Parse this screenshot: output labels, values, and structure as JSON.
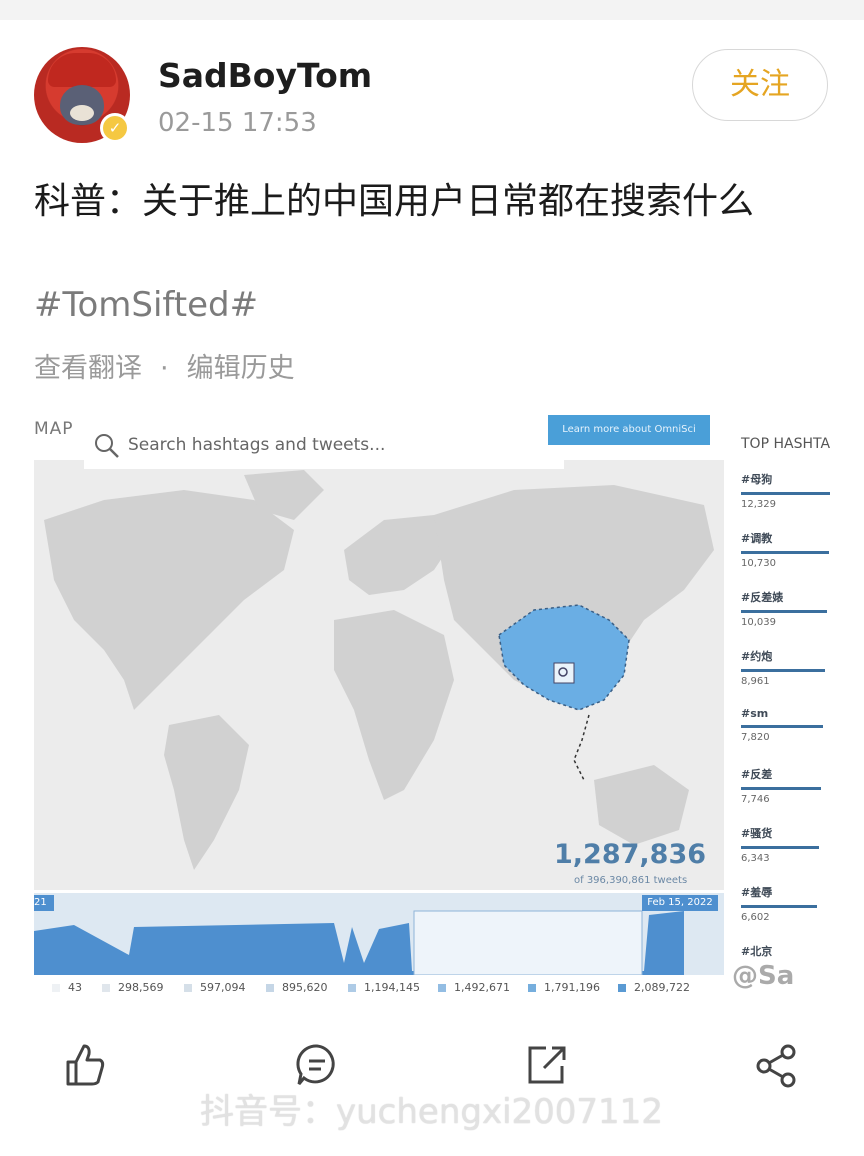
{
  "post": {
    "username": "SadBoyTom",
    "timestamp": "02-15 17:53",
    "follow_label": "关注",
    "text": "科普：关于推上的中国用户日常都在搜索什么",
    "hashtag": "#TomSifted#",
    "view_translation": "查看翻译",
    "separator": "·",
    "edit_history": "编辑历史"
  },
  "embed": {
    "map_label": "MAP",
    "search_placeholder": "Search hashtags and tweets...",
    "learn_more": "Learn more about OmniSci",
    "big_count": "1,287,836",
    "count_sub": "of 396,390,861 tweets",
    "timeline_start": "21",
    "timeline_end": "Feb 15, 2022",
    "legend": [
      "43",
      "298,569",
      "597,094",
      "895,620",
      "1,194,145",
      "1,492,671",
      "1,791,196",
      "2,089,722"
    ],
    "top_title": "TOP HASHTA",
    "top_hashtags": [
      {
        "tag": "#母狗",
        "count": "12,329"
      },
      {
        "tag": "#调教",
        "count": "10,730"
      },
      {
        "tag": "#反差婊",
        "count": "10,039"
      },
      {
        "tag": "#约炮",
        "count": "8,961"
      },
      {
        "tag": "#sm",
        "count": "7,820"
      },
      {
        "tag": "#反差",
        "count": "7,746"
      },
      {
        "tag": "#骚货",
        "count": "6,343"
      },
      {
        "tag": "#羞辱",
        "count": "6,602"
      },
      {
        "tag": "#北京",
        "count": ""
      }
    ],
    "weibo_mark": "@Sa"
  },
  "watermark": "抖音号：yuchengxi2007112",
  "icons": {
    "like": "thumbs-up-icon",
    "comment": "comment-icon",
    "repost": "repost-icon",
    "share": "share-icon"
  },
  "colors": {
    "follow_text": "#e5a522",
    "highlight_region": "#6aaee4",
    "timeline_fill": "#4e8fcf"
  }
}
